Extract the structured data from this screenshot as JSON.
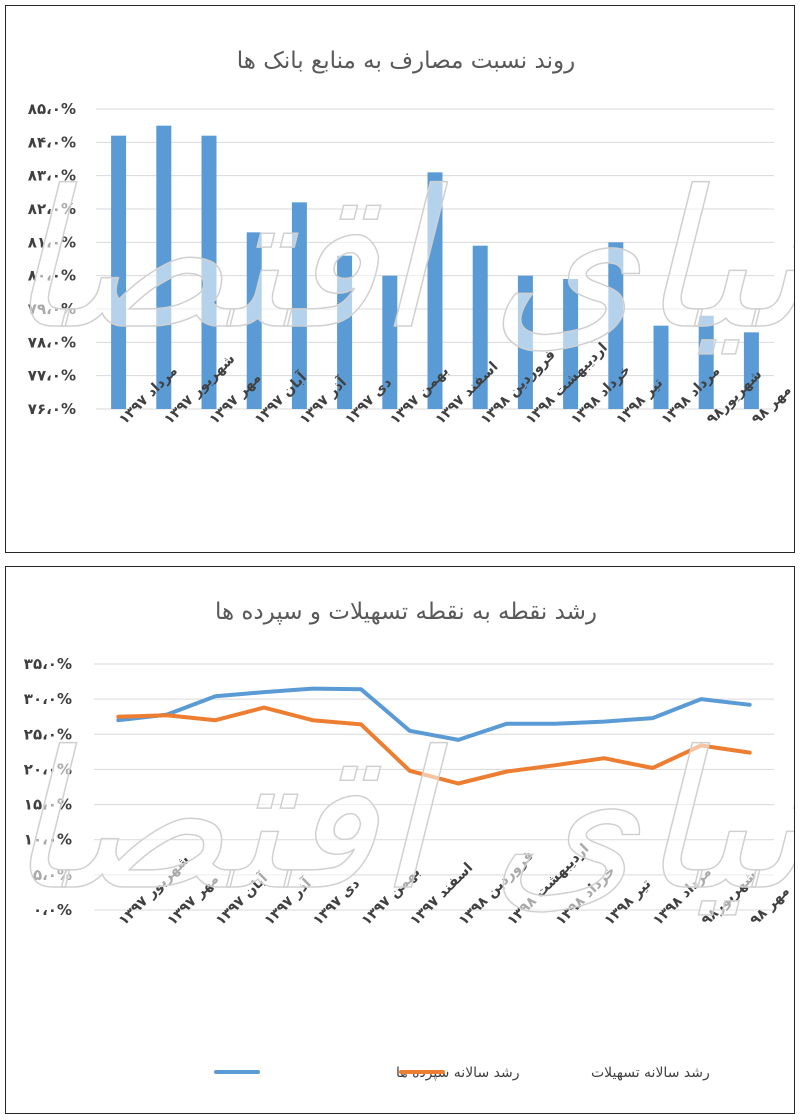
{
  "colors": {
    "bar": "#5b9bd5",
    "deposits": "#5b9bd5",
    "loans": "#ed7d31",
    "grid": "#d9d9d9",
    "text": "#404040",
    "border": "#262626"
  },
  "watermark": "دنیای اقتصاد",
  "chart_data": [
    {
      "type": "bar",
      "title": "روند نسبت مصارف به منابع بانک ها",
      "categories": [
        "مرداد ۱۳۹۷",
        "شهریور ۱۳۹۷",
        "مهر ۱۳۹۷",
        "آبان ۱۳۹۷",
        "آذر ۱۳۹۷",
        "دی ۱۳۹۷",
        "بهمن ۱۳۹۷",
        "اسفند ۱۳۹۷",
        "فروردین ۱۳۹۸",
        "اردیبهشت ۱۳۹۸",
        "خرداد ۱۳۹۸",
        "تیر ۱۳۹۸",
        "مرداد ۱۳۹۸",
        "شهریور۹۸",
        "مهر ۹۸"
      ],
      "values": [
        84.2,
        84.5,
        84.2,
        81.3,
        82.2,
        80.6,
        80.0,
        83.1,
        80.9,
        80.0,
        79.9,
        81.0,
        78.5,
        78.8,
        78.3
      ],
      "ylim": [
        76,
        85
      ],
      "yticks": [
        76,
        77,
        78,
        79,
        80,
        81,
        82,
        83,
        84,
        85
      ],
      "ytick_labels": [
        "۷۶،۰%",
        "۷۷،۰%",
        "۷۸،۰%",
        "۷۹،۰%",
        "۸۰،۰%",
        "۸۱،۰%",
        "۸۲،۰%",
        "۸۳،۰%",
        "۸۴،۰%",
        "۸۵،۰%"
      ],
      "grid": true
    },
    {
      "type": "line",
      "title": "رشد نقطه به نقطه تسهیلات و سپرده ها",
      "categories": [
        "شهریور ۱۳۹۷",
        "مهر ۱۳۹۷",
        "آبان ۱۳۹۷",
        "آذر ۱۳۹۷",
        "دی ۱۳۹۷",
        "بهمن ۱۳۹۷",
        "اسفند ۱۳۹۷",
        "فروردین ۱۳۹۸",
        "اردیبهشت ۱۳۹۸",
        "خرداد ۱۳۹۸",
        "تیر ۱۳۹۸",
        "مرداد ۱۳۹۸",
        "شهریور۹۸",
        "مهر ۹۸"
      ],
      "series": [
        {
          "name": "رشد سالانه سپرده ها",
          "color": "#5b9bd5",
          "values": [
            27.0,
            27.8,
            30.4,
            31.0,
            31.5,
            31.4,
            25.5,
            24.2,
            26.5,
            26.5,
            26.8,
            27.3,
            30.0,
            29.2
          ]
        },
        {
          "name": "رشد سالانه تسهیلات",
          "color": "#ed7d31",
          "values": [
            27.5,
            27.7,
            27.0,
            28.8,
            27.0,
            26.4,
            19.8,
            18.0,
            19.7,
            20.6,
            21.6,
            20.2,
            23.4,
            22.4
          ]
        }
      ],
      "ylim": [
        0,
        35
      ],
      "yticks": [
        0,
        5,
        10,
        15,
        20,
        25,
        30,
        35
      ],
      "ytick_labels": [
        "۰،۰%",
        "۵،۰%",
        "۱۰،۰%",
        "۱۵،۰%",
        "۲۰،۰%",
        "۲۵،۰%",
        "۳۰،۰%",
        "۳۵،۰%"
      ],
      "grid": true,
      "legend": "bottom"
    }
  ]
}
